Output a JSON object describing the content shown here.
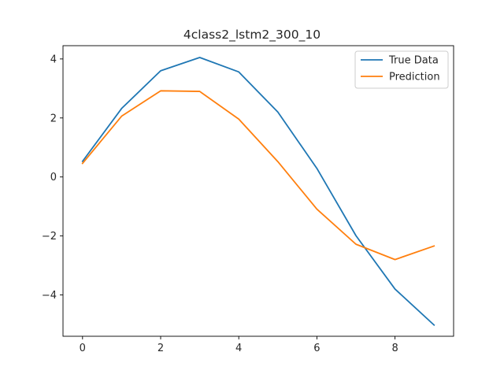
{
  "chart_data": {
    "type": "line",
    "title": "4class2_lstm2_300_10",
    "xlabel": "",
    "ylabel": "",
    "x": [
      0,
      1,
      2,
      3,
      4,
      5,
      6,
      7,
      8,
      9
    ],
    "xlim": [
      -0.5,
      9.5
    ],
    "ylim": [
      -5.4,
      4.45
    ],
    "xticks": [
      0,
      2,
      4,
      6,
      8
    ],
    "yticks": [
      -4,
      -2,
      0,
      2,
      4
    ],
    "xtick_labels": [
      "0",
      "2",
      "4",
      "6",
      "8"
    ],
    "ytick_labels": [
      "−4",
      "−2",
      "0",
      "2",
      "4"
    ],
    "grid": false,
    "legend_position": "top-right",
    "series": [
      {
        "name": "True Data",
        "color": "#1f77b4",
        "values": [
          0.53,
          2.32,
          3.6,
          4.05,
          3.56,
          2.2,
          0.29,
          -1.99,
          -3.8,
          -5.02
        ]
      },
      {
        "name": "Prediction",
        "color": "#ff7f0e",
        "values": [
          0.46,
          2.06,
          2.92,
          2.9,
          1.96,
          0.52,
          -1.09,
          -2.28,
          -2.8,
          -2.34
        ]
      }
    ]
  }
}
